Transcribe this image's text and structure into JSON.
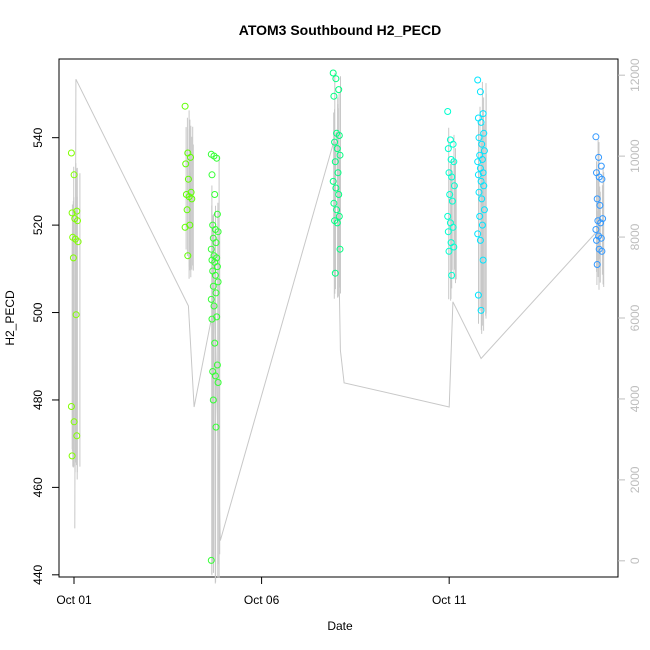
{
  "chart_data": {
    "type": "scatter",
    "title": "ATOM3 Southbound H2_PECD",
    "xlabel": "Date",
    "ylabel": "H2_PECD",
    "x_ticks": [
      "Oct 01",
      "Oct 06",
      "Oct 11"
    ],
    "x_tick_values": [
      1,
      6,
      11
    ],
    "xlim": [
      0.6,
      15.5
    ],
    "ylim": [
      439.5,
      558
    ],
    "y_ticks": [
      440,
      460,
      480,
      500,
      520,
      540
    ],
    "y2lim": [
      -400,
      12400
    ],
    "y2_ticks": [
      0,
      2000,
      4000,
      6000,
      8000,
      10000,
      12000
    ],
    "series_colors": [
      "#80ff00",
      "#5fff00",
      "#33ff33",
      "#00ff80",
      "#00ffd0",
      "#00e5ff",
      "#3399ff"
    ],
    "line_color": "#c8c8c8",
    "clusters": [
      {
        "x": 1.02,
        "color": "#80ff00",
        "y": [
          536.5,
          531.5,
          523.2,
          522.8,
          521.5,
          521.0,
          517.2,
          516.8,
          516.2,
          512.5,
          499.5,
          478.5,
          475.0,
          471.8,
          467.2
        ]
      },
      {
        "x": 4.05,
        "color": "#5fff00",
        "y": [
          547.2,
          536.5,
          535.5,
          534.0,
          530.5,
          527.5,
          527.0,
          526.5,
          526.0,
          523.5,
          520.0,
          519.5,
          513.0
        ]
      },
      {
        "x": 4.75,
        "color": "#33ff33",
        "y": [
          536.2,
          535.8,
          535.3,
          531.5,
          527.0,
          522.5,
          520.0,
          519.0,
          518.5,
          517.0,
          516.0,
          514.5,
          513.0,
          512.5,
          512.0,
          511.5,
          510.5,
          509.5,
          508.5,
          507.0,
          506.0,
          504.5,
          503.0,
          501.5,
          499.0,
          498.5,
          493.0,
          488.0,
          486.5,
          485.5,
          484.0,
          480.0,
          473.8,
          443.3
        ]
      },
      {
        "x": 8.0,
        "color": "#00ff80",
        "y": [
          554.8,
          553.5,
          551.0,
          549.5,
          541.0,
          540.5,
          539.0,
          537.5,
          536.0,
          534.5,
          532.0,
          530.0,
          528.5,
          527.0,
          525.0,
          523.5,
          522.0,
          521.0,
          520.5,
          514.5,
          509.0
        ]
      },
      {
        "x": 11.05,
        "color": "#00ffd0",
        "y": [
          546.0,
          539.5,
          538.5,
          537.5,
          535.0,
          534.5,
          532.0,
          531.0,
          529.0,
          527.0,
          525.5,
          522.0,
          520.5,
          519.5,
          518.5,
          516.0,
          515.0,
          514.0,
          508.5
        ]
      },
      {
        "x": 11.85,
        "color": "#00e5ff",
        "y": [
          553.2,
          550.5,
          545.5,
          544.5,
          543.5,
          541.0,
          540.0,
          538.5,
          537.0,
          536.0,
          535.0,
          534.5,
          533.0,
          532.0,
          531.5,
          530.0,
          529.0,
          527.5,
          526.0,
          523.5,
          522.0,
          520.0,
          518.0,
          516.5,
          512.0,
          504.0,
          500.5
        ]
      },
      {
        "x": 15.0,
        "color": "#3399ff",
        "y": [
          540.2,
          535.5,
          533.5,
          532.0,
          531.0,
          530.5,
          526.0,
          524.5,
          521.5,
          521.0,
          520.5,
          519.0,
          517.5,
          517.0,
          516.5,
          514.5,
          514.0,
          511.0
        ]
      }
    ],
    "connector_line": {
      "x": [
        1.02,
        1.05,
        4.05,
        4.2,
        4.75,
        4.9,
        8.0,
        8.1,
        8.2,
        11.0,
        11.1,
        11.85,
        15.0
      ],
      "y2": [
        800,
        11900,
        6300,
        3800,
        6400,
        500,
        10600,
        5200,
        4400,
        3800,
        6400,
        5000,
        8200
      ]
    }
  }
}
